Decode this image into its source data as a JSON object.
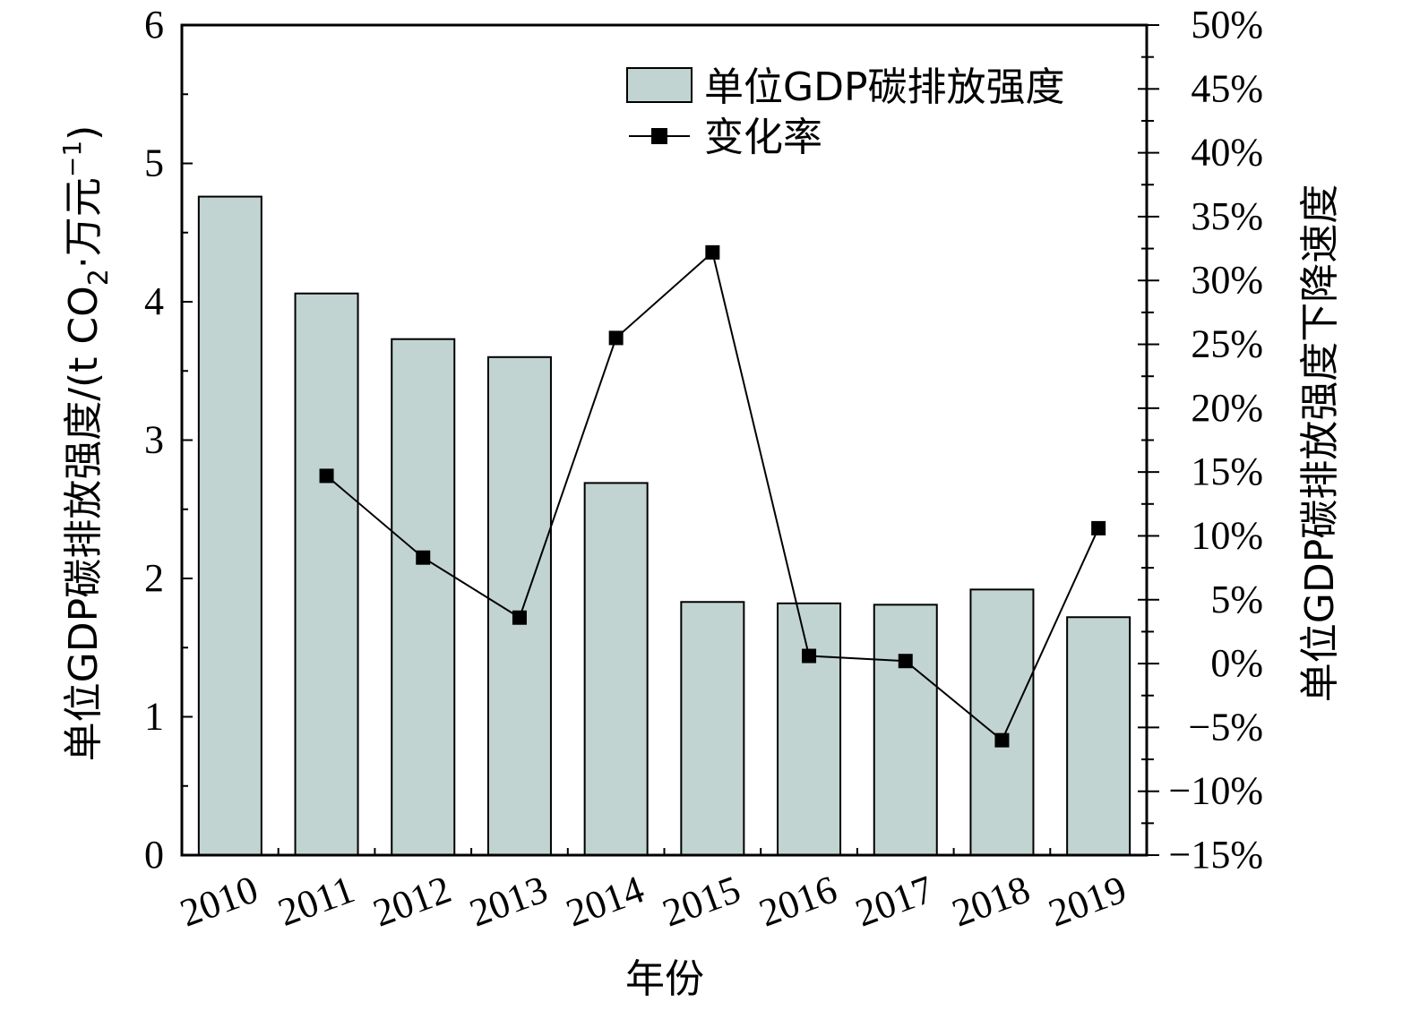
{
  "chart_data": {
    "type": "bar",
    "categories": [
      "2010",
      "2011",
      "2012",
      "2013",
      "2014",
      "2015",
      "2016",
      "2017",
      "2018",
      "2019"
    ],
    "series": [
      {
        "name": "单位GDP碳排放强度",
        "type": "bar",
        "axis": "left",
        "values": [
          4.76,
          4.06,
          3.73,
          3.6,
          2.69,
          1.83,
          1.82,
          1.81,
          1.92,
          1.72
        ]
      },
      {
        "name": "变化率",
        "type": "line",
        "axis": "right",
        "values": [
          null,
          14.7,
          8.3,
          3.6,
          25.5,
          32.2,
          0.6,
          0.2,
          -6.0,
          10.6
        ]
      }
    ],
    "xlabel": "年份",
    "ylabel_left": {
      "main": "单位GDP碳排放强度/(t CO",
      "sub": "2",
      "mid": "·万元",
      "sup": "−1",
      "end": ")"
    },
    "ylabel_right": "单位GDP碳排放强度下降速度",
    "ylim_left": [
      0,
      6
    ],
    "ylim_right": [
      -15,
      50
    ],
    "yticks_left": [
      "0",
      "1",
      "2",
      "3",
      "4",
      "5",
      "6"
    ],
    "yticks_right": [
      "−15%",
      "−10%",
      "−5%",
      "0%",
      "5%",
      "10%",
      "15%",
      "20%",
      "25%",
      "30%",
      "35%",
      "40%",
      "45%",
      "50%"
    ],
    "legend_position": "top-right",
    "grid": false,
    "colors": {
      "bar_fill": "#c2d4d2",
      "bar_stroke": "#000000",
      "line": "#000000",
      "marker": "#000000"
    }
  }
}
